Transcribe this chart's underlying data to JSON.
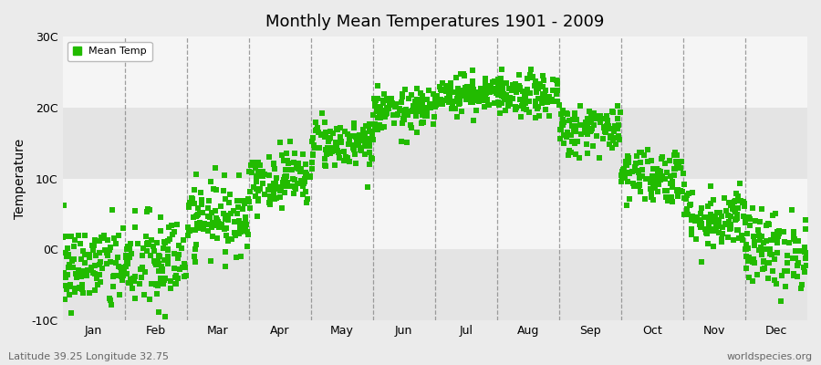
{
  "title": "Monthly Mean Temperatures 1901 - 2009",
  "ylabel": "Temperature",
  "subtitle_left": "Latitude 39.25 Longitude 32.75",
  "subtitle_right": "worldspecies.org",
  "dot_color": "#22BB00",
  "bg_color": "#EBEBEB",
  "plot_bg_color": "#EBEBEB",
  "fig_bg_color": "#EBEBEB",
  "band_color_light": "#F5F5F5",
  "band_color_dark": "#E4E4E4",
  "yticks": [
    -10,
    0,
    10,
    20,
    30
  ],
  "ytick_labels": [
    "-10C",
    "0C",
    "10C",
    "20C",
    "30C"
  ],
  "months": [
    "Jan",
    "Feb",
    "Mar",
    "Apr",
    "May",
    "Jun",
    "Jul",
    "Aug",
    "Sep",
    "Oct",
    "Nov",
    "Dec"
  ],
  "month_means": [
    -2.5,
    -2.0,
    4.5,
    10.0,
    15.0,
    19.5,
    22.0,
    21.5,
    17.0,
    10.5,
    4.5,
    0.0
  ],
  "month_stds": [
    3.2,
    3.5,
    2.5,
    2.0,
    1.8,
    1.5,
    1.3,
    1.5,
    1.8,
    2.0,
    2.2,
    2.8
  ],
  "n_points": 109,
  "random_seed": 42,
  "marker_size": 18,
  "legend_label": "Mean Temp"
}
